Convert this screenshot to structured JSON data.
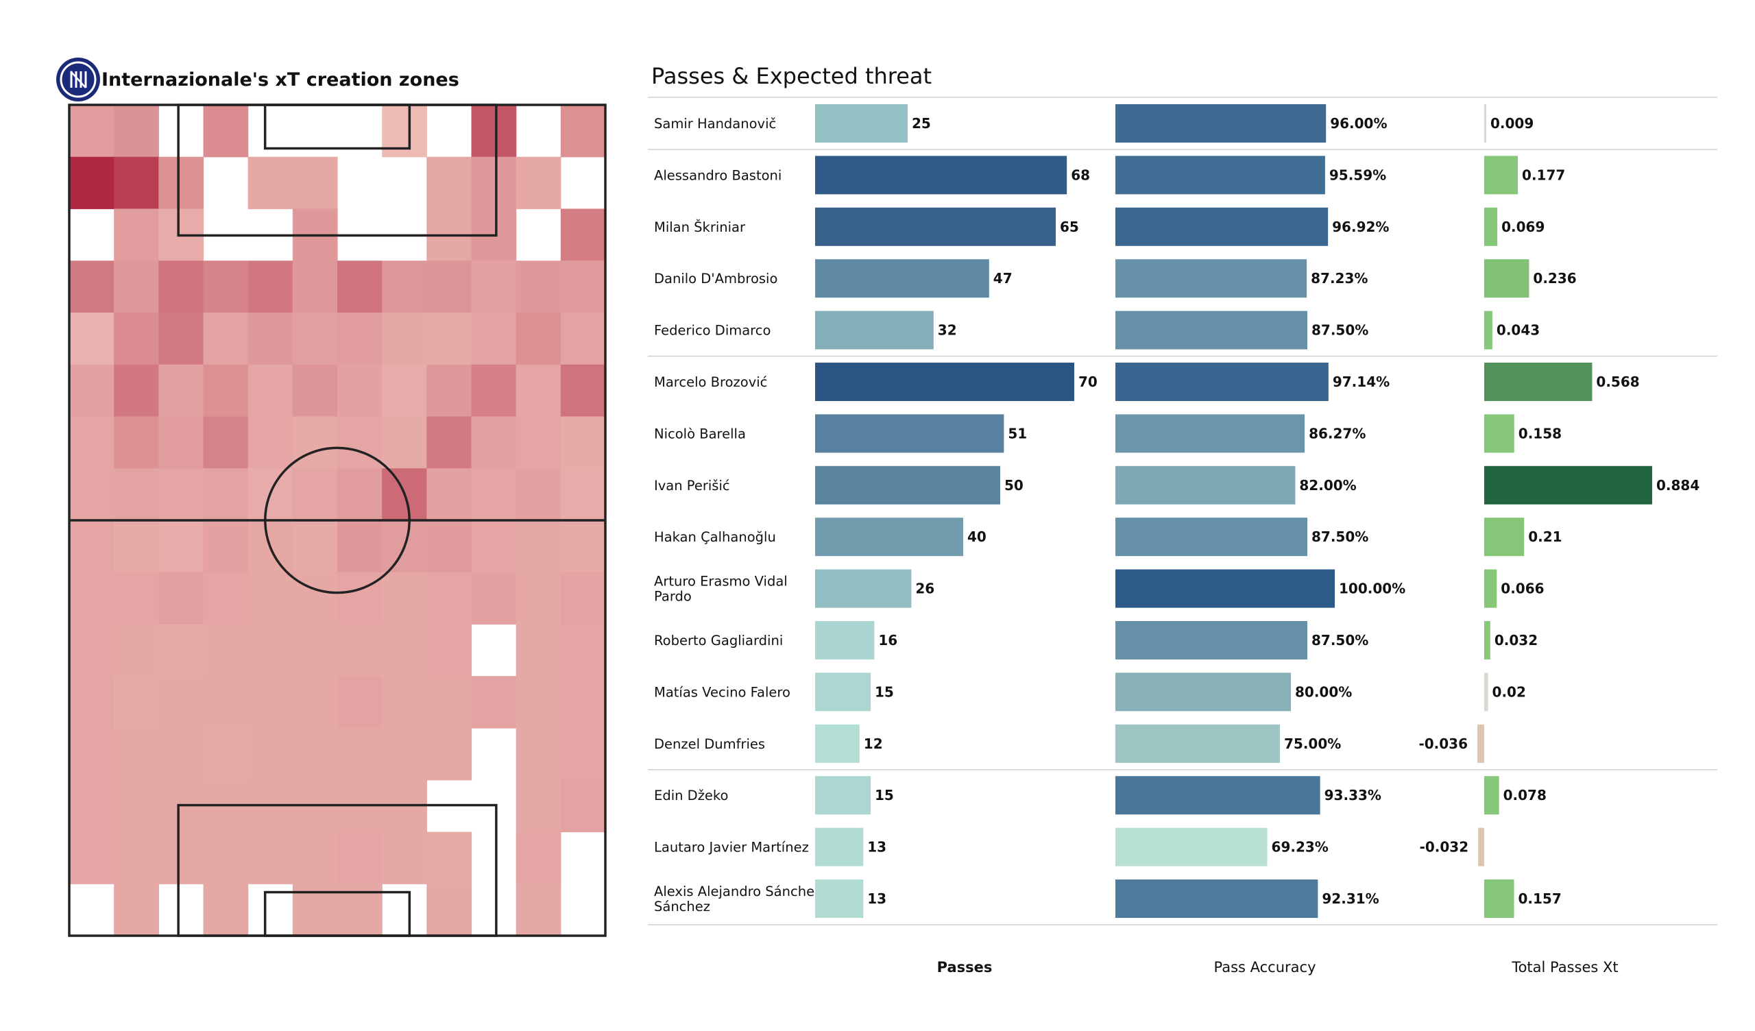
{
  "colors": {
    "heat_low": "#fde0d2",
    "heat_high": "#a50f2d",
    "passes_low": "#b8e3d8",
    "passes_high": "#2b5584",
    "accuracy_low": "#bde4d6",
    "accuracy_high": "#2c5a89",
    "xt_pos_low": "#86c77a",
    "xt_pos_high": "#22643d",
    "xt_neg": "#dcc6b1",
    "pitch_lines": "#222222",
    "logo_blue": "#1b2a7a"
  },
  "heatmap": {
    "title": "Internazionale's xT creation zones",
    "logo_icon": "inter-crest-icon",
    "grid": [
      [
        0.32,
        0.37,
        0.0,
        0.4,
        0.0,
        0.0,
        0.0,
        0.18,
        0.0,
        0.66,
        0.0,
        0.38
      ],
      [
        0.88,
        0.77,
        0.38,
        0.0,
        0.27,
        0.27,
        0.0,
        0.0,
        0.27,
        0.34,
        0.27,
        0.0
      ],
      [
        0.0,
        0.32,
        0.25,
        0.0,
        0.0,
        0.34,
        0.0,
        0.0,
        0.27,
        0.34,
        0.0,
        0.47
      ],
      [
        0.49,
        0.34,
        0.52,
        0.44,
        0.5,
        0.34,
        0.52,
        0.35,
        0.36,
        0.3,
        0.34,
        0.33
      ],
      [
        0.22,
        0.4,
        0.49,
        0.29,
        0.34,
        0.31,
        0.32,
        0.27,
        0.26,
        0.29,
        0.38,
        0.29
      ],
      [
        0.3,
        0.5,
        0.3,
        0.38,
        0.28,
        0.36,
        0.3,
        0.25,
        0.34,
        0.46,
        0.28,
        0.52
      ],
      [
        0.28,
        0.38,
        0.32,
        0.45,
        0.28,
        0.26,
        0.28,
        0.26,
        0.49,
        0.31,
        0.28,
        0.26
      ],
      [
        0.28,
        0.29,
        0.28,
        0.29,
        0.25,
        0.28,
        0.32,
        0.56,
        0.3,
        0.28,
        0.3,
        0.25
      ],
      [
        0.28,
        0.26,
        0.25,
        0.3,
        0.27,
        0.26,
        0.34,
        0.32,
        0.33,
        0.28,
        0.27,
        0.26
      ],
      [
        0.28,
        0.28,
        0.31,
        0.28,
        0.27,
        0.27,
        0.28,
        0.27,
        0.28,
        0.3,
        0.27,
        0.29
      ],
      [
        0.28,
        0.27,
        0.26,
        0.27,
        0.27,
        0.27,
        0.27,
        0.27,
        0.28,
        0.0,
        0.27,
        0.28
      ],
      [
        0.28,
        0.26,
        0.27,
        0.27,
        0.27,
        0.27,
        0.29,
        0.27,
        0.27,
        0.29,
        0.27,
        0.28
      ],
      [
        0.28,
        0.27,
        0.27,
        0.26,
        0.27,
        0.27,
        0.27,
        0.27,
        0.27,
        0.0,
        0.27,
        0.28
      ],
      [
        0.28,
        0.27,
        0.27,
        0.27,
        0.27,
        0.27,
        0.27,
        0.27,
        0.0,
        0.0,
        0.27,
        0.29
      ],
      [
        0.28,
        0.27,
        0.27,
        0.27,
        0.27,
        0.27,
        0.28,
        0.27,
        0.26,
        0.0,
        0.28,
        0.0
      ],
      [
        0.0,
        0.27,
        0.0,
        0.27,
        0.0,
        0.27,
        0.27,
        0.0,
        0.27,
        0.0,
        0.27,
        0.0
      ]
    ]
  },
  "table": {
    "title": "Passes & Expected threat",
    "column_labels": [
      "Passes",
      "Pass Accuracy",
      "Total Passes Xt"
    ],
    "group_separators_after": [
      0,
      4,
      12,
      15
    ]
  },
  "chart_data": {
    "type": "bar",
    "title": "Passes & Expected threat",
    "categories": [
      "Samir Handanovič",
      "Alessandro Bastoni",
      "Milan Škriniar",
      "Danilo D'Ambrosio",
      "Federico Dimarco",
      "Marcelo Brozović",
      "Nicolò Barella",
      "Ivan Perišić",
      "Hakan Çalhanoğlu",
      "Arturo Erasmo Vidal Pardo",
      "Roberto Gagliardini",
      "Matías Vecino Falero",
      "Denzel Dumfries",
      "Edin Džeko",
      "Lautaro Javier Martínez",
      "Alexis Alejandro Sánchez Sánchez"
    ],
    "series": [
      {
        "name": "Passes",
        "values": [
          25,
          68,
          65,
          47,
          32,
          70,
          51,
          50,
          40,
          26,
          16,
          15,
          12,
          15,
          13,
          13
        ],
        "labels": [
          "25",
          "68",
          "65",
          "47",
          "32",
          "70",
          "51",
          "50",
          "40",
          "26",
          "16",
          "15",
          "12",
          "15",
          "13",
          "13"
        ]
      },
      {
        "name": "Pass Accuracy",
        "values": [
          96.0,
          95.59,
          96.92,
          87.23,
          87.5,
          97.14,
          86.27,
          82.0,
          87.5,
          100.0,
          87.5,
          80.0,
          75.0,
          93.33,
          69.23,
          92.31
        ],
        "labels": [
          "96.00%",
          "95.59%",
          "96.92%",
          "87.23%",
          "87.50%",
          "97.14%",
          "86.27%",
          "82.00%",
          "87.50%",
          "100.00%",
          "87.50%",
          "80.00%",
          "75.00%",
          "93.33%",
          "69.23%",
          "92.31%"
        ]
      },
      {
        "name": "Total Passes Xt",
        "values": [
          0.009,
          0.177,
          0.069,
          0.236,
          0.043,
          0.568,
          0.158,
          0.884,
          0.21,
          0.066,
          0.032,
          0.02,
          -0.036,
          0.078,
          -0.032,
          0.157
        ],
        "labels": [
          "0.009",
          "0.177",
          "0.069",
          "0.236",
          "0.043",
          "0.568",
          "0.158",
          "0.884",
          "0.21",
          "0.066",
          "0.032",
          "0.02",
          "-0.036",
          "0.078",
          "-0.032",
          "0.157"
        ]
      }
    ],
    "xlim_passes": [
      0,
      70
    ],
    "xlim_accuracy": [
      0,
      100
    ],
    "xlim_xt": [
      -0.036,
      0.884
    ]
  }
}
